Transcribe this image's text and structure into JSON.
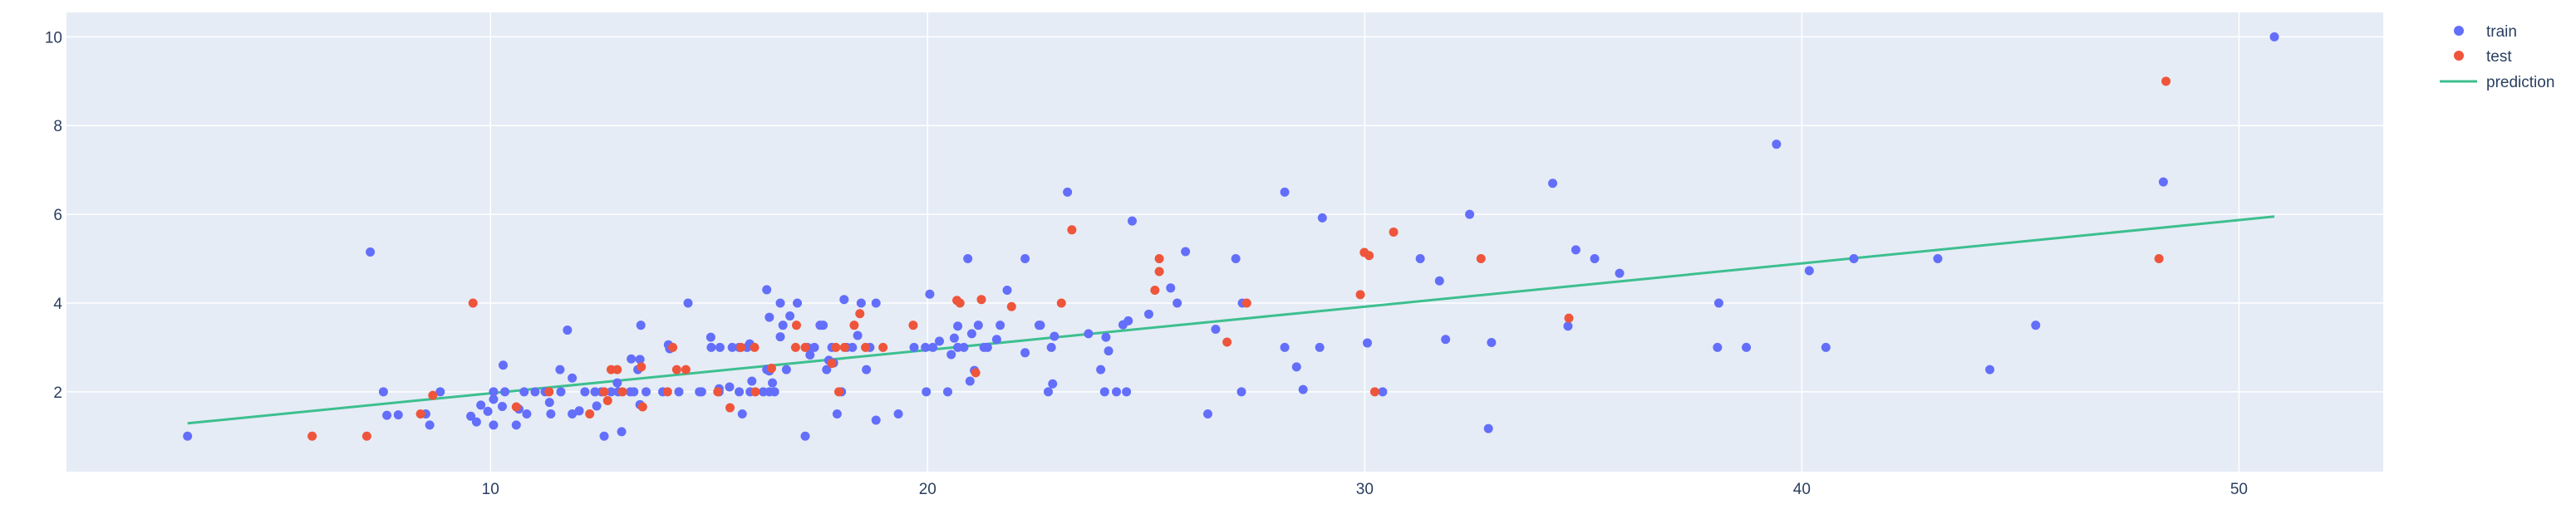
{
  "chart_data": {
    "type": "scatter",
    "title": "",
    "xlabel": "",
    "ylabel": "",
    "xlim": [
      0.3,
      53.3
    ],
    "ylim": [
      0.2,
      10.55
    ],
    "x_ticks": [
      10,
      20,
      30,
      40,
      50
    ],
    "y_ticks": [
      2,
      4,
      6,
      8,
      10
    ],
    "grid": true,
    "legend_placement": "top-right",
    "colors": {
      "plot_bg": "#e5ecf6",
      "grid": "#ffffff",
      "train": "#636efa",
      "test": "#ef553b",
      "prediction": "#3dbf8f"
    },
    "series": [
      {
        "name": "train",
        "mode": "markers",
        "points": [
          [
            3.07,
            1.0
          ],
          [
            7.25,
            5.15
          ],
          [
            7.55,
            2.0
          ],
          [
            7.63,
            1.47
          ],
          [
            7.89,
            1.48
          ],
          [
            8.52,
            1.5
          ],
          [
            8.61,
            1.25
          ],
          [
            8.85,
            2.0
          ],
          [
            9.55,
            1.45
          ],
          [
            9.68,
            1.32
          ],
          [
            9.78,
            1.7
          ],
          [
            9.94,
            1.56
          ],
          [
            10.07,
            2.0
          ],
          [
            10.07,
            1.83
          ],
          [
            10.07,
            1.25
          ],
          [
            10.27,
            1.67
          ],
          [
            10.29,
            2.6
          ],
          [
            10.33,
            2.0
          ],
          [
            10.59,
            1.25
          ],
          [
            10.65,
            1.61
          ],
          [
            10.77,
            2.0
          ],
          [
            10.83,
            1.5
          ],
          [
            11.02,
            2.0
          ],
          [
            11.25,
            2.0
          ],
          [
            11.35,
            1.76
          ],
          [
            11.38,
            1.5
          ],
          [
            11.59,
            2.5
          ],
          [
            11.61,
            2.0
          ],
          [
            11.76,
            3.39
          ],
          [
            11.87,
            1.5
          ],
          [
            11.87,
            2.31
          ],
          [
            12.03,
            1.57
          ],
          [
            12.16,
            2.0
          ],
          [
            12.39,
            2.0
          ],
          [
            12.43,
            1.68
          ],
          [
            12.54,
            2.0
          ],
          [
            12.6,
            1.0
          ],
          [
            12.76,
            2.0
          ],
          [
            12.9,
            2.2
          ],
          [
            12.92,
            2.0
          ],
          [
            13.0,
            1.1
          ],
          [
            13.2,
            2.0
          ],
          [
            13.22,
            2.74
          ],
          [
            13.28,
            2.0
          ],
          [
            13.37,
            2.5
          ],
          [
            13.42,
            1.71
          ],
          [
            13.42,
            2.73
          ],
          [
            13.44,
            3.5
          ],
          [
            13.56,
            2.0
          ],
          [
            13.94,
            2.0
          ],
          [
            14.07,
            3.06
          ],
          [
            14.1,
            2.97
          ],
          [
            14.31,
            2.0
          ],
          [
            14.52,
            4.0
          ],
          [
            14.78,
            2.0
          ],
          [
            14.83,
            2.0
          ],
          [
            15.04,
            3.23
          ],
          [
            15.05,
            3.0
          ],
          [
            15.23,
            2.0
          ],
          [
            15.25,
            3.0
          ],
          [
            15.23,
            2.07
          ],
          [
            15.47,
            2.11
          ],
          [
            15.53,
            3.0
          ],
          [
            15.69,
            3.0
          ],
          [
            15.69,
            2.0
          ],
          [
            15.76,
            1.5
          ],
          [
            15.87,
            3.0
          ],
          [
            15.93,
            3.08
          ],
          [
            15.98,
            2.24
          ],
          [
            15.94,
            2.0
          ],
          [
            16.24,
            2.0
          ],
          [
            16.32,
            4.3
          ],
          [
            16.32,
            2.5
          ],
          [
            16.38,
            2.0
          ],
          [
            16.38,
            2.47
          ],
          [
            16.38,
            3.68
          ],
          [
            16.45,
            2.2
          ],
          [
            16.5,
            2.0
          ],
          [
            16.63,
            3.24
          ],
          [
            16.63,
            4.0
          ],
          [
            16.69,
            3.5
          ],
          [
            16.77,
            2.5
          ],
          [
            16.85,
            3.71
          ],
          [
            17.02,
            4.0
          ],
          [
            17.2,
            1.0
          ],
          [
            17.25,
            3.0
          ],
          [
            17.31,
            2.83
          ],
          [
            17.41,
            3.0
          ],
          [
            17.54,
            3.5
          ],
          [
            17.61,
            3.5
          ],
          [
            17.69,
            2.5
          ],
          [
            17.74,
            2.71
          ],
          [
            17.81,
            3.0
          ],
          [
            17.85,
            2.65
          ],
          [
            17.93,
            1.5
          ],
          [
            18.03,
            2.0
          ],
          [
            18.09,
            4.08
          ],
          [
            18.15,
            3.0
          ],
          [
            18.28,
            3.0
          ],
          [
            18.4,
            3.27
          ],
          [
            18.48,
            4.0
          ],
          [
            18.6,
            2.5
          ],
          [
            18.68,
            3.0
          ],
          [
            18.82,
            1.36
          ],
          [
            18.82,
            4.0
          ],
          [
            19.33,
            1.5
          ],
          [
            19.69,
            3.0
          ],
          [
            19.95,
            3.0
          ],
          [
            19.97,
            2.0
          ],
          [
            20.05,
            4.2
          ],
          [
            20.12,
            3.0
          ],
          [
            20.27,
            3.14
          ],
          [
            20.46,
            2.0
          ],
          [
            20.54,
            2.84
          ],
          [
            20.61,
            3.21
          ],
          [
            20.69,
            3.0
          ],
          [
            20.69,
            3.48
          ],
          [
            20.83,
            3.0
          ],
          [
            20.92,
            5.0
          ],
          [
            20.97,
            2.24
          ],
          [
            21.01,
            3.31
          ],
          [
            21.07,
            2.48
          ],
          [
            21.16,
            3.5
          ],
          [
            21.29,
            3.0
          ],
          [
            21.37,
            3.0
          ],
          [
            21.58,
            3.18
          ],
          [
            21.66,
            3.5
          ],
          [
            21.82,
            4.29
          ],
          [
            22.23,
            2.88
          ],
          [
            22.23,
            5.0
          ],
          [
            22.55,
            3.5
          ],
          [
            22.58,
            3.5
          ],
          [
            22.76,
            2.0
          ],
          [
            22.83,
            3.0
          ],
          [
            22.86,
            2.18
          ],
          [
            22.9,
            3.25
          ],
          [
            23.2,
            6.5
          ],
          [
            23.68,
            3.31
          ],
          [
            23.96,
            2.5
          ],
          [
            24.05,
            2.0
          ],
          [
            24.08,
            3.23
          ],
          [
            24.14,
            2.92
          ],
          [
            24.32,
            2.0
          ],
          [
            24.47,
            3.51
          ],
          [
            24.55,
            2.0
          ],
          [
            24.59,
            3.6
          ],
          [
            24.68,
            5.85
          ],
          [
            25.06,
            3.75
          ],
          [
            25.56,
            4.34
          ],
          [
            25.71,
            4.0
          ],
          [
            25.9,
            5.16
          ],
          [
            26.41,
            1.5
          ],
          [
            26.59,
            3.41
          ],
          [
            27.05,
            5.0
          ],
          [
            27.18,
            2.0
          ],
          [
            27.2,
            4.0
          ],
          [
            28.17,
            3.0
          ],
          [
            28.17,
            6.5
          ],
          [
            28.44,
            2.56
          ],
          [
            28.59,
            2.05
          ],
          [
            28.97,
            3.0
          ],
          [
            29.03,
            5.92
          ],
          [
            30.06,
            3.1
          ],
          [
            30.41,
            2.0
          ],
          [
            31.27,
            5.0
          ],
          [
            31.71,
            4.5
          ],
          [
            31.85,
            3.18
          ],
          [
            32.4,
            6.0
          ],
          [
            32.83,
            1.17
          ],
          [
            32.9,
            3.11
          ],
          [
            34.3,
            6.7
          ],
          [
            34.65,
            3.48
          ],
          [
            34.83,
            5.2
          ],
          [
            35.26,
            5.0
          ],
          [
            35.83,
            4.67
          ],
          [
            38.07,
            3.0
          ],
          [
            38.1,
            4.0
          ],
          [
            38.73,
            3.0
          ],
          [
            39.42,
            7.58
          ],
          [
            40.17,
            4.73
          ],
          [
            40.55,
            3.0
          ],
          [
            41.19,
            5.0
          ],
          [
            43.11,
            5.0
          ],
          [
            44.3,
            2.5
          ],
          [
            45.35,
            3.5
          ],
          [
            48.27,
            6.73
          ],
          [
            50.81,
            10.0
          ]
        ]
      },
      {
        "name": "test",
        "mode": "markers",
        "points": [
          [
            5.92,
            1.0
          ],
          [
            7.17,
            1.0
          ],
          [
            8.4,
            1.5
          ],
          [
            8.68,
            1.92
          ],
          [
            9.6,
            4.0
          ],
          [
            10.59,
            1.66
          ],
          [
            11.34,
            2.0
          ],
          [
            12.27,
            1.5
          ],
          [
            12.6,
            2.0
          ],
          [
            12.68,
            1.8
          ],
          [
            12.76,
            2.5
          ],
          [
            12.9,
            2.5
          ],
          [
            13.02,
            2.0
          ],
          [
            13.45,
            2.56
          ],
          [
            13.48,
            1.66
          ],
          [
            14.05,
            2.0
          ],
          [
            14.17,
            3.0
          ],
          [
            14.26,
            2.5
          ],
          [
            14.47,
            2.5
          ],
          [
            15.2,
            2.0
          ],
          [
            15.48,
            1.64
          ],
          [
            15.73,
            3.0
          ],
          [
            16.06,
            2.0
          ],
          [
            16.04,
            3.0
          ],
          [
            16.43,
            2.53
          ],
          [
            16.98,
            3.0
          ],
          [
            17.0,
            3.5
          ],
          [
            17.2,
            3.0
          ],
          [
            17.81,
            2.64
          ],
          [
            17.9,
            3.0
          ],
          [
            17.97,
            2.0
          ],
          [
            18.1,
            3.0
          ],
          [
            18.32,
            3.5
          ],
          [
            18.45,
            3.76
          ],
          [
            18.58,
            3.0
          ],
          [
            18.98,
            3.0
          ],
          [
            19.67,
            3.5
          ],
          [
            20.67,
            4.06
          ],
          [
            20.74,
            4.0
          ],
          [
            21.1,
            2.43
          ],
          [
            21.23,
            4.08
          ],
          [
            21.92,
            3.92
          ],
          [
            23.06,
            4.0
          ],
          [
            23.3,
            5.65
          ],
          [
            25.2,
            4.29
          ],
          [
            25.3,
            5.0
          ],
          [
            25.3,
            4.71
          ],
          [
            26.85,
            3.12
          ],
          [
            27.3,
            4.0
          ],
          [
            29.9,
            4.19
          ],
          [
            29.99,
            5.14
          ],
          [
            30.1,
            5.07
          ],
          [
            30.23,
            2.0
          ],
          [
            30.66,
            5.6
          ],
          [
            32.66,
            5.0
          ],
          [
            34.67,
            3.66
          ],
          [
            48.17,
            5.0
          ],
          [
            48.33,
            9.0
          ]
        ]
      },
      {
        "name": "prediction",
        "mode": "lines",
        "points": [
          [
            3.07,
            1.29
          ],
          [
            50.81,
            5.95
          ]
        ]
      }
    ]
  }
}
